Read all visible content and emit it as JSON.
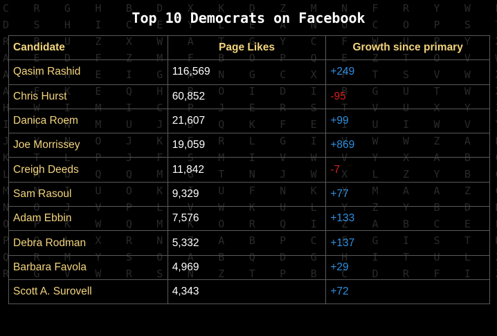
{
  "title": "Top 10 Democrats on Facebook",
  "headers": {
    "candidate": "Candidate",
    "likes": "Page Likes",
    "growth": "Growth since primary"
  },
  "colors": {
    "background": "#000000",
    "header_text": "#f3d47e",
    "name_text": "#f3d47e",
    "likes_text": "#ffffff",
    "positive_growth": "#2f8fe0",
    "negative_growth": "#d62020",
    "grid_line": "#5a5a5a"
  },
  "chart_data": {
    "type": "table",
    "title": "Top 10 Democrats on Facebook",
    "columns": [
      "Candidate",
      "Page Likes",
      "Growth since primary"
    ],
    "rows": [
      {
        "name": "Qasim Rashid",
        "likes": "116,569",
        "growth": "+249"
      },
      {
        "name": "Chris Hurst",
        "likes": "60,852",
        "growth": "-95"
      },
      {
        "name": "Danica Roem",
        "likes": "21,607",
        "growth": "+99"
      },
      {
        "name": "Joe Morrissey",
        "likes": "19,059",
        "growth": "+869"
      },
      {
        "name": "Creigh Deeds",
        "likes": "11,842",
        "growth": "-7"
      },
      {
        "name": "Sam Rasoul",
        "likes": "9,329",
        "growth": "+77"
      },
      {
        "name": "Adam Ebbin",
        "likes": "7,576",
        "growth": "+133"
      },
      {
        "name": "Debra Rodman",
        "likes": "5,332",
        "growth": "+137"
      },
      {
        "name": "Barbara Favola",
        "likes": "4,969",
        "growth": "+29"
      },
      {
        "name": "Scott A. Surovell",
        "likes": "4,343",
        "growth": "+72"
      }
    ]
  }
}
